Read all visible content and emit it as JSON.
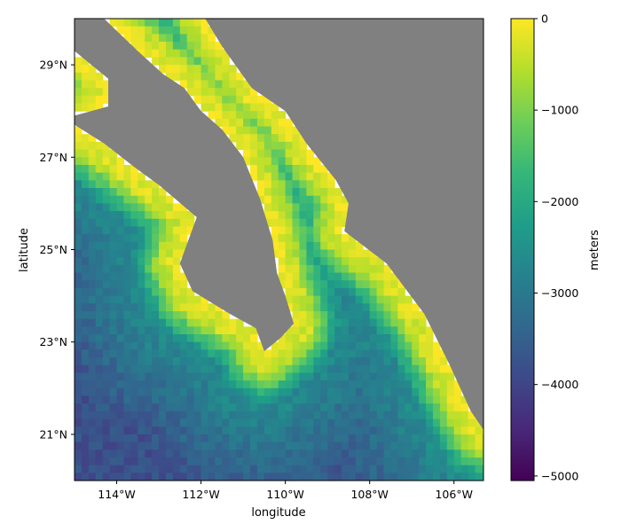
{
  "chart_data": {
    "type": "heatmap",
    "title": "",
    "xlabel": "longitude",
    "ylabel": "latitude",
    "xlim": [
      -115,
      -105.3
    ],
    "ylim": [
      20,
      30
    ],
    "x_ticks": [
      {
        "value": -114,
        "label": "114°W"
      },
      {
        "value": -112,
        "label": "112°W"
      },
      {
        "value": -110,
        "label": "110°W"
      },
      {
        "value": -108,
        "label": "108°W"
      },
      {
        "value": -106,
        "label": "106°W"
      }
    ],
    "y_ticks": [
      {
        "value": 21,
        "label": "21°N"
      },
      {
        "value": 23,
        "label": "23°N"
      },
      {
        "value": 25,
        "label": "25°N"
      },
      {
        "value": 27,
        "label": "27°N"
      },
      {
        "value": 29,
        "label": "29°N"
      }
    ],
    "colorbar": {
      "label": "meters",
      "range": [
        -5050,
        0
      ],
      "ticks": [
        {
          "value": 0,
          "label": "0"
        },
        {
          "value": -1000,
          "label": "−1000"
        },
        {
          "value": -2000,
          "label": "−2000"
        },
        {
          "value": -3000,
          "label": "−3000"
        },
        {
          "value": -4000,
          "label": "−4000"
        },
        {
          "value": -5000,
          "label": "−5000"
        }
      ],
      "colormap": [
        "#440154",
        "#482878",
        "#3e4989",
        "#31688e",
        "#26828e",
        "#1f9e89",
        "#35b779",
        "#6ece58",
        "#b5de2b",
        "#fde725"
      ]
    },
    "land_color": "#808080",
    "land_polygons": [
      [
        [
          -114.3,
          30
        ],
        [
          -111.9,
          30
        ],
        [
          -111.5,
          29.4
        ],
        [
          -110.8,
          28.5
        ],
        [
          -110.0,
          28.0
        ],
        [
          -109.5,
          27.3
        ],
        [
          -108.8,
          26.5
        ],
        [
          -108.5,
          26.0
        ],
        [
          -108.6,
          25.4
        ],
        [
          -107.6,
          24.7
        ],
        [
          -106.7,
          23.6
        ],
        [
          -106.1,
          22.5
        ],
        [
          -105.6,
          21.5
        ],
        [
          -105.3,
          21.1
        ],
        [
          -105.3,
          30
        ]
      ],
      [
        [
          -115,
          30
        ],
        [
          -114.3,
          30
        ],
        [
          -113.5,
          29.3
        ],
        [
          -112.9,
          28.8
        ],
        [
          -112.4,
          28.5
        ],
        [
          -112.0,
          28.0
        ],
        [
          -111.5,
          27.6
        ],
        [
          -111.0,
          27.0
        ],
        [
          -110.6,
          26.1
        ],
        [
          -110.3,
          25.2
        ],
        [
          -110.2,
          24.5
        ],
        [
          -110.0,
          24.0
        ],
        [
          -109.8,
          23.4
        ],
        [
          -110.1,
          23.1
        ],
        [
          -110.5,
          22.8
        ],
        [
          -110.7,
          23.3
        ],
        [
          -111.3,
          23.6
        ],
        [
          -112.2,
          24.1
        ],
        [
          -112.5,
          24.7
        ],
        [
          -112.1,
          25.7
        ],
        [
          -113.0,
          26.4
        ],
        [
          -113.6,
          26.8
        ],
        [
          -114.3,
          27.3
        ],
        [
          -115,
          27.7
        ],
        [
          -115,
          27.9
        ],
        [
          -114.2,
          28.1
        ],
        [
          -114.2,
          28.7
        ],
        [
          -115,
          29.3
        ]
      ]
    ]
  }
}
